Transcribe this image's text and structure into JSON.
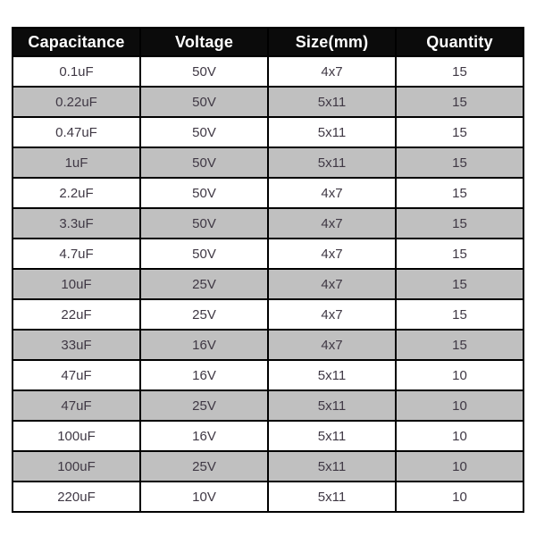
{
  "table": {
    "headers": [
      "Capacitance",
      "Voltage",
      "Size(mm)",
      "Quantity"
    ],
    "rows": [
      [
        "0.1uF",
        "50V",
        "4x7",
        "15"
      ],
      [
        "0.22uF",
        "50V",
        "5x11",
        "15"
      ],
      [
        "0.47uF",
        "50V",
        "5x11",
        "15"
      ],
      [
        "1uF",
        "50V",
        "5x11",
        "15"
      ],
      [
        "2.2uF",
        "50V",
        "4x7",
        "15"
      ],
      [
        "3.3uF",
        "50V",
        "4x7",
        "15"
      ],
      [
        "4.7uF",
        "50V",
        "4x7",
        "15"
      ],
      [
        "10uF",
        "25V",
        "4x7",
        "15"
      ],
      [
        "22uF",
        "25V",
        "4x7",
        "15"
      ],
      [
        "33uF",
        "16V",
        "4x7",
        "15"
      ],
      [
        "47uF",
        "16V",
        "5x11",
        "10"
      ],
      [
        "47uF",
        "25V",
        "5x11",
        "10"
      ],
      [
        "100uF",
        "16V",
        "5x11",
        "10"
      ],
      [
        "100uF",
        "25V",
        "5x11",
        "10"
      ],
      [
        "220uF",
        "10V",
        "5x11",
        "10"
      ]
    ]
  },
  "chart_data": {
    "type": "table",
    "columns": [
      "Capacitance",
      "Voltage",
      "Size(mm)",
      "Quantity"
    ],
    "rows": [
      {
        "capacitance": "0.1uF",
        "voltage": "50V",
        "size_mm": "4x7",
        "quantity": 15
      },
      {
        "capacitance": "0.22uF",
        "voltage": "50V",
        "size_mm": "5x11",
        "quantity": 15
      },
      {
        "capacitance": "0.47uF",
        "voltage": "50V",
        "size_mm": "5x11",
        "quantity": 15
      },
      {
        "capacitance": "1uF",
        "voltage": "50V",
        "size_mm": "5x11",
        "quantity": 15
      },
      {
        "capacitance": "2.2uF",
        "voltage": "50V",
        "size_mm": "4x7",
        "quantity": 15
      },
      {
        "capacitance": "3.3uF",
        "voltage": "50V",
        "size_mm": "4x7",
        "quantity": 15
      },
      {
        "capacitance": "4.7uF",
        "voltage": "50V",
        "size_mm": "4x7",
        "quantity": 15
      },
      {
        "capacitance": "10uF",
        "voltage": "25V",
        "size_mm": "4x7",
        "quantity": 15
      },
      {
        "capacitance": "22uF",
        "voltage": "25V",
        "size_mm": "4x7",
        "quantity": 15
      },
      {
        "capacitance": "33uF",
        "voltage": "16V",
        "size_mm": "4x7",
        "quantity": 15
      },
      {
        "capacitance": "47uF",
        "voltage": "16V",
        "size_mm": "5x11",
        "quantity": 10
      },
      {
        "capacitance": "47uF",
        "voltage": "25V",
        "size_mm": "5x11",
        "quantity": 10
      },
      {
        "capacitance": "100uF",
        "voltage": "16V",
        "size_mm": "5x11",
        "quantity": 10
      },
      {
        "capacitance": "100uF",
        "voltage": "25V",
        "size_mm": "5x11",
        "quantity": 10
      },
      {
        "capacitance": "220uF",
        "voltage": "10V",
        "size_mm": "5x11",
        "quantity": 10
      }
    ],
    "title": "",
    "layout_hints": {
      "header_style": "black band, white bold text",
      "row_striping": "white / silver alternating starting with white",
      "gridlines": "on"
    }
  },
  "colors": {
    "header_bg": "#0b0b0b",
    "header_text": "#ffffff",
    "row_bg": "#ffffff",
    "row_alt_bg": "#c0c0c0",
    "body_text": "#3f3844",
    "border": "#000000",
    "page_bg": "#ffffff"
  }
}
